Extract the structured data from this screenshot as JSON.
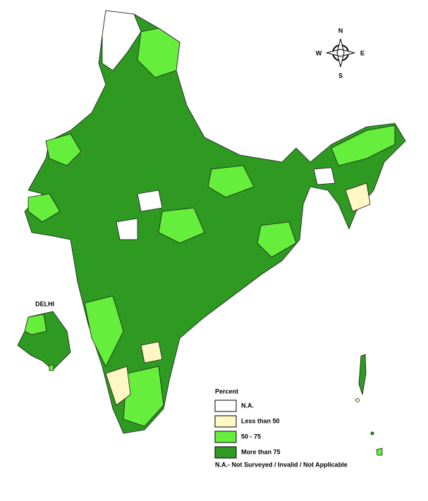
{
  "compass": {
    "north": "N",
    "south": "S",
    "east": "E",
    "west": "W"
  },
  "inset": {
    "label": "DELHI"
  },
  "legend": {
    "title": "Percent",
    "items": [
      {
        "label": "N.A.",
        "color": "#ffffff"
      },
      {
        "label": "Less than 50",
        "color": "#fff8c4"
      },
      {
        "label": "50 - 75",
        "color": "#66ee3c"
      },
      {
        "label": "More than 75",
        "color": "#2e9a22"
      }
    ]
  },
  "note": "N.A.- Not Surveyed / Invalid / Not Applicable"
}
